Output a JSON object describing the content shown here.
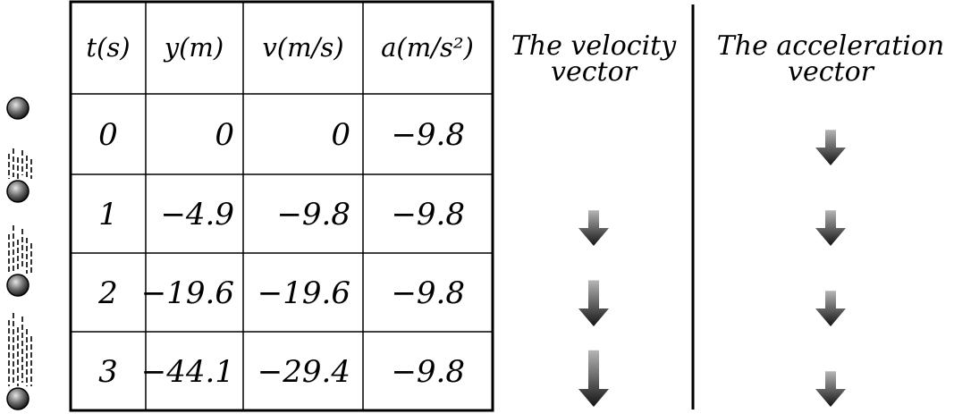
{
  "table": {
    "headers": [
      "t(s)",
      "y(m)",
      "v(m/s)",
      "a(m/s²)"
    ],
    "rows": [
      {
        "t": "0",
        "y": "0",
        "v": "0",
        "a": "−9.8"
      },
      {
        "t": "1",
        "y": "−4.9",
        "v": "−9.8",
        "a": "−9.8"
      },
      {
        "t": "2",
        "y": "−19.6",
        "v": "−19.6",
        "a": "−9.8"
      },
      {
        "t": "3",
        "y": "−44.1",
        "v": "−29.4",
        "a": "−9.8"
      }
    ]
  },
  "velocity_column": {
    "title_line1": "The velocity",
    "title_line2": "vector",
    "arrow_magnitudes": [
      0,
      9.8,
      19.6,
      29.4
    ]
  },
  "acceleration_column": {
    "title_line1": "The acceleration",
    "title_line2": "vector",
    "arrow_magnitudes": [
      9.8,
      9.8,
      9.8,
      9.8
    ]
  },
  "colors": {
    "line": "#000000",
    "arrow_top": "#b5b5b5",
    "arrow_bottom": "#141414",
    "ball_highlight": "#e6e6e6",
    "ball_shadow": "#1a1a1a"
  }
}
